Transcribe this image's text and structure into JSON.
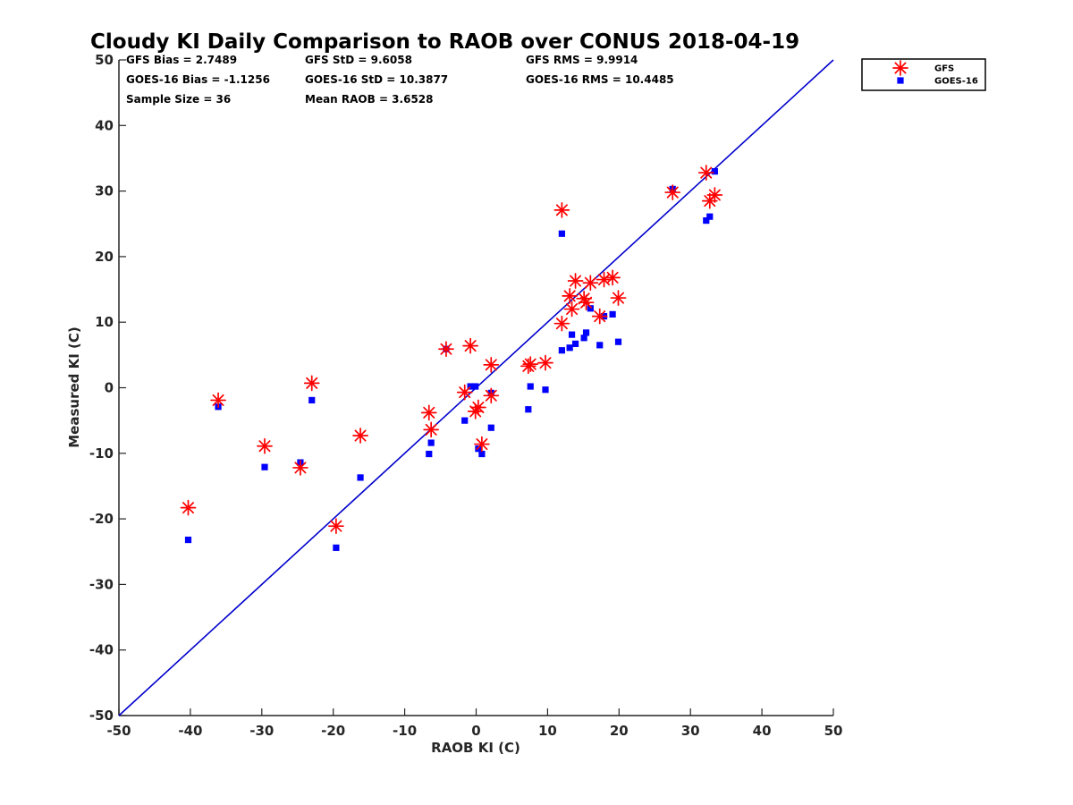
{
  "chart_data": {
    "type": "scatter",
    "title": "Cloudy KI Daily Comparison to RAOB over CONUS 2018-04-19",
    "xlabel": "RAOB KI (C)",
    "ylabel": "Measured KI (C)",
    "xlim": [
      -50,
      50
    ],
    "ylim": [
      -50,
      50
    ],
    "xticks": [
      -50,
      -40,
      -30,
      -20,
      -10,
      0,
      10,
      20,
      30,
      40,
      50
    ],
    "yticks": [
      -50,
      -40,
      -30,
      -20,
      -10,
      0,
      10,
      20,
      30,
      40,
      50
    ],
    "grid": false,
    "legend_position": "top-right outside",
    "reference_line": {
      "x": [
        -50,
        50
      ],
      "y": [
        -50,
        50
      ],
      "color": "#0000cc"
    },
    "stats": [
      "GFS Bias = 2.7489",
      "GFS StD = 9.6058",
      "GFS RMS = 9.9914",
      "GOES-16 Bias = -1.1256",
      "GOES-16 StD = 10.3877",
      "GOES-16 RMS = 10.4485",
      "Sample Size = 36",
      "Mean RAOB = 3.6528"
    ],
    "series": [
      {
        "name": "GFS",
        "marker": "asterisk",
        "color": "#ff0000",
        "points": [
          [
            -40.3,
            -18.3
          ],
          [
            -36.1,
            -1.9
          ],
          [
            -29.6,
            -8.9
          ],
          [
            -24.6,
            -12.2
          ],
          [
            -23.0,
            0.7
          ],
          [
            -19.6,
            -21.1
          ],
          [
            -16.2,
            -7.3
          ],
          [
            -6.6,
            -3.8
          ],
          [
            -6.3,
            -6.4
          ],
          [
            -4.2,
            5.9
          ],
          [
            -1.6,
            -0.7
          ],
          [
            -0.8,
            6.4
          ],
          [
            -0.1,
            -3.6
          ],
          [
            0.3,
            -3.0
          ],
          [
            0.8,
            -8.6
          ],
          [
            2.1,
            3.5
          ],
          [
            2.1,
            -1.2
          ],
          [
            7.3,
            3.3
          ],
          [
            7.6,
            3.6
          ],
          [
            9.7,
            3.8
          ],
          [
            12.0,
            27.1
          ],
          [
            12.0,
            9.8
          ],
          [
            13.1,
            14.0
          ],
          [
            13.4,
            12.0
          ],
          [
            13.9,
            16.3
          ],
          [
            15.1,
            13.6
          ],
          [
            15.4,
            13.0
          ],
          [
            16.0,
            16.0
          ],
          [
            17.3,
            10.9
          ],
          [
            17.9,
            16.5
          ],
          [
            19.1,
            16.8
          ],
          [
            19.9,
            13.7
          ],
          [
            27.5,
            29.8
          ],
          [
            32.2,
            32.8
          ],
          [
            32.7,
            28.5
          ],
          [
            33.4,
            29.4
          ]
        ]
      },
      {
        "name": "GOES-16",
        "marker": "square",
        "color": "#0000ff",
        "points": [
          [
            -40.3,
            -23.2
          ],
          [
            -36.1,
            -2.9
          ],
          [
            -29.6,
            -12.1
          ],
          [
            -24.6,
            -11.4
          ],
          [
            -23.0,
            -1.9
          ],
          [
            -19.6,
            -24.4
          ],
          [
            -16.2,
            -13.7
          ],
          [
            -6.6,
            -10.1
          ],
          [
            -6.3,
            -8.4
          ],
          [
            -4.2,
            5.9
          ],
          [
            -1.6,
            -5.0
          ],
          [
            -0.8,
            0.2
          ],
          [
            -0.1,
            0.2
          ],
          [
            0.3,
            -9.3
          ],
          [
            0.8,
            -10.1
          ],
          [
            2.1,
            -0.8
          ],
          [
            2.1,
            -6.1
          ],
          [
            7.3,
            -3.3
          ],
          [
            7.6,
            0.2
          ],
          [
            9.7,
            -0.3
          ],
          [
            12.0,
            23.5
          ],
          [
            12.0,
            5.7
          ],
          [
            13.1,
            6.1
          ],
          [
            13.4,
            8.1
          ],
          [
            13.9,
            6.7
          ],
          [
            15.1,
            7.6
          ],
          [
            15.4,
            8.4
          ],
          [
            16.0,
            12.1
          ],
          [
            17.3,
            6.5
          ],
          [
            17.9,
            10.9
          ],
          [
            19.1,
            11.2
          ],
          [
            19.9,
            7.0
          ],
          [
            27.5,
            30.3
          ],
          [
            32.2,
            25.5
          ],
          [
            32.7,
            26.1
          ],
          [
            33.4,
            33.0
          ]
        ]
      }
    ]
  }
}
